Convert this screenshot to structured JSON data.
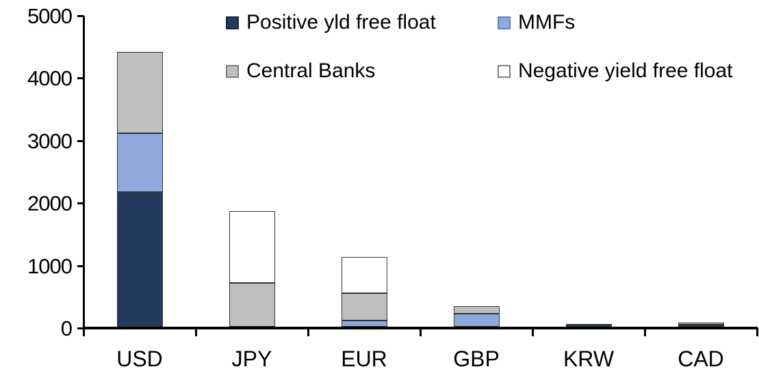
{
  "chart_data": {
    "type": "bar",
    "stacked": true,
    "title": "",
    "xlabel": "",
    "ylabel": "",
    "categories": [
      "USD",
      "JPY",
      "EUR",
      "GBP",
      "KRW",
      "CAD"
    ],
    "series": [
      {
        "name": "Positive yld free float",
        "color": "#24395E",
        "swatch_border": "#16233B",
        "values": [
          2150,
          0,
          0,
          0,
          40,
          30
        ]
      },
      {
        "name": "MMFs",
        "color": "#8EA9DB",
        "swatch_border": "#5B83C3",
        "values": [
          950,
          0,
          100,
          210,
          0,
          0
        ]
      },
      {
        "name": "Central Banks",
        "color": "#BFBFBF",
        "swatch_border": "#7F7F7F",
        "values": [
          1300,
          700,
          440,
          120,
          0,
          35
        ]
      },
      {
        "name": "Negative yield free float",
        "color": "#FFFFFF",
        "swatch_border": "#7F7F7F",
        "values": [
          0,
          1150,
          575,
          0,
          0,
          0
        ]
      }
    ],
    "ylim": [
      0,
      5000
    ],
    "yticks": [
      0,
      1000,
      2000,
      3000,
      4000,
      5000
    ],
    "grid": false,
    "legend_position": "top",
    "legend_rows": [
      [
        "Positive yld free float",
        "MMFs"
      ],
      [
        "Central Banks",
        "Negative yield free float"
      ]
    ]
  },
  "axis_color": "#000000",
  "background": "#FFFFFF"
}
